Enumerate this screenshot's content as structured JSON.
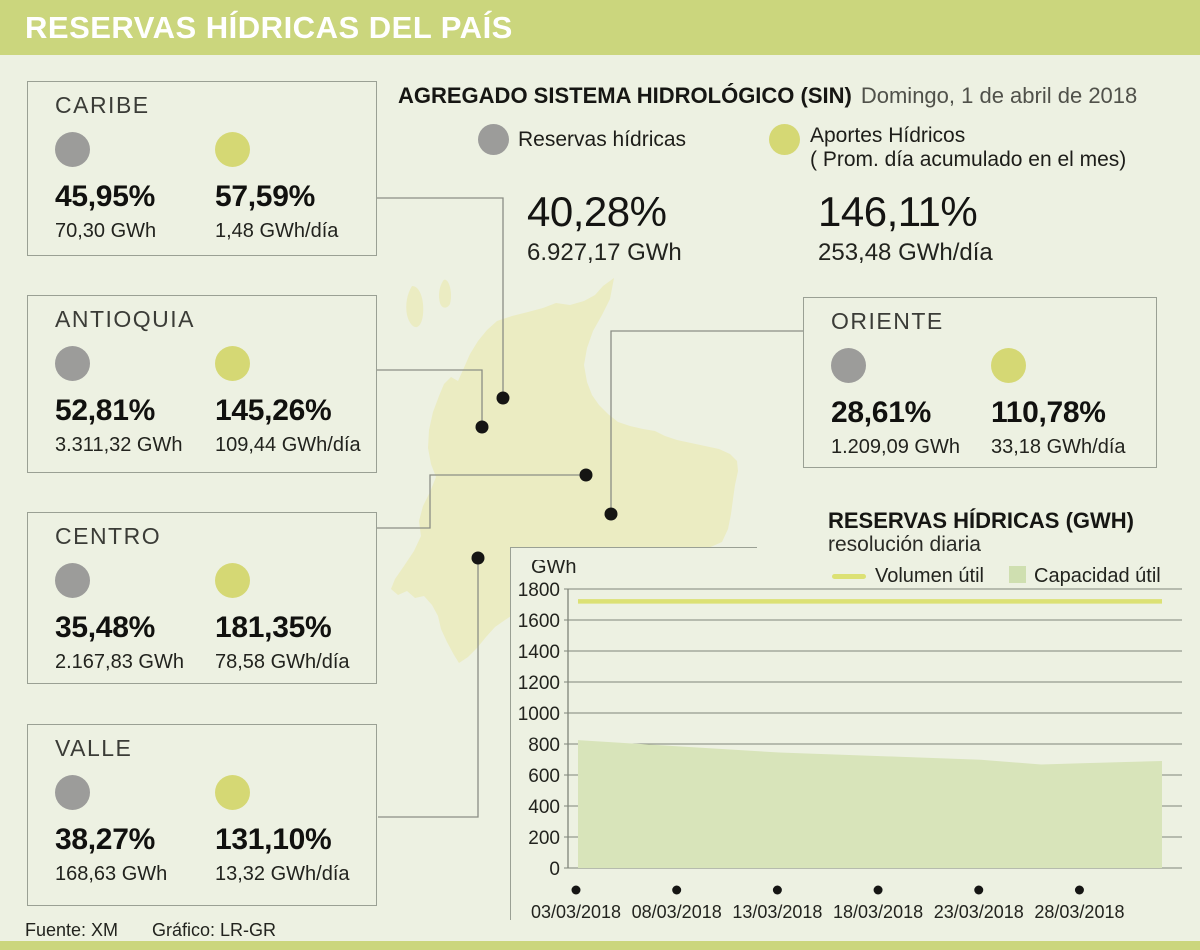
{
  "page": {
    "title": "RESERVAS HÍDRICAS DEL PAÍS",
    "source_label": "Fuente: XM",
    "credit_label": "Gráfico: LR-GR"
  },
  "colors": {
    "bar_bg": "#cbd67d",
    "page_bg": "#edf1e2",
    "map_fill": "#ebecc2",
    "gray_dot": "#9c9c9a",
    "green_dot": "#d5d874",
    "volume_line": "#dce174",
    "capacity_area": "#d8e4ba",
    "gridline": "#80857a",
    "box_border": "#9aa094",
    "connector": "#8b8e85"
  },
  "aggregate": {
    "title": "AGREGADO SISTEMA HIDROLÓGICO (SIN)",
    "date": "Domingo, 1 de abril de 2018",
    "legend": {
      "reserves_label": "Reservas hídricas",
      "contributions_label": "Aportes Hídricos",
      "contributions_sublabel": "( Prom. día acumulado en el mes)"
    },
    "reserves": {
      "percent": "40,28%",
      "value": "6.927,17 GWh"
    },
    "contributions": {
      "percent": "146,11%",
      "value": "253,48 GWh/día"
    }
  },
  "regions": [
    {
      "name": "CARIBE",
      "reserves_percent": "45,95%",
      "reserves_value": "70,30 GWh",
      "contrib_percent": "57,59%",
      "contrib_value": "1,48 GWh/día"
    },
    {
      "name": "ANTIOQUIA",
      "reserves_percent": "52,81%",
      "reserves_value": "3.311,32 GWh",
      "contrib_percent": "145,26%",
      "contrib_value": "109,44 GWh/día"
    },
    {
      "name": "CENTRO",
      "reserves_percent": "35,48%",
      "reserves_value": "2.167,83 GWh",
      "contrib_percent": "181,35%",
      "contrib_value": "78,58 GWh/día"
    },
    {
      "name": "VALLE",
      "reserves_percent": "38,27%",
      "reserves_value": "168,63 GWh",
      "contrib_percent": "131,10%",
      "contrib_value": "13,32 GWh/día"
    },
    {
      "name": "ORIENTE",
      "reserves_percent": "28,61%",
      "reserves_value": "1.209,09 GWh",
      "contrib_percent": "110,78%",
      "contrib_value": "33,18 GWh/día"
    }
  ],
  "chart_data": {
    "type": "area",
    "title": "RESERVAS HÍDRICAS (GWH)",
    "subtitle": "resolución diaria",
    "ylabel": "GWh",
    "ylim": [
      0,
      1800
    ],
    "ytick_step": 200,
    "grid": true,
    "legend_position": "top",
    "x_domain_days": 29,
    "x_tick_days": [
      0,
      5,
      10,
      15,
      20,
      25
    ],
    "x_tick_labels": [
      "03/03/2018",
      "08/03/2018",
      "13/03/2018",
      "18/03/2018",
      "23/03/2018",
      "28/03/2018"
    ],
    "series": [
      {
        "name": "Volumen útil",
        "type": "line",
        "days": [
          0,
          29
        ],
        "values": [
          1720,
          1720
        ]
      },
      {
        "name": "Capacidad útil",
        "type": "area",
        "days": [
          0,
          5,
          10,
          15,
          20,
          23,
          25,
          29
        ],
        "values": [
          825,
          785,
          745,
          722,
          698,
          668,
          676,
          690
        ]
      }
    ]
  }
}
